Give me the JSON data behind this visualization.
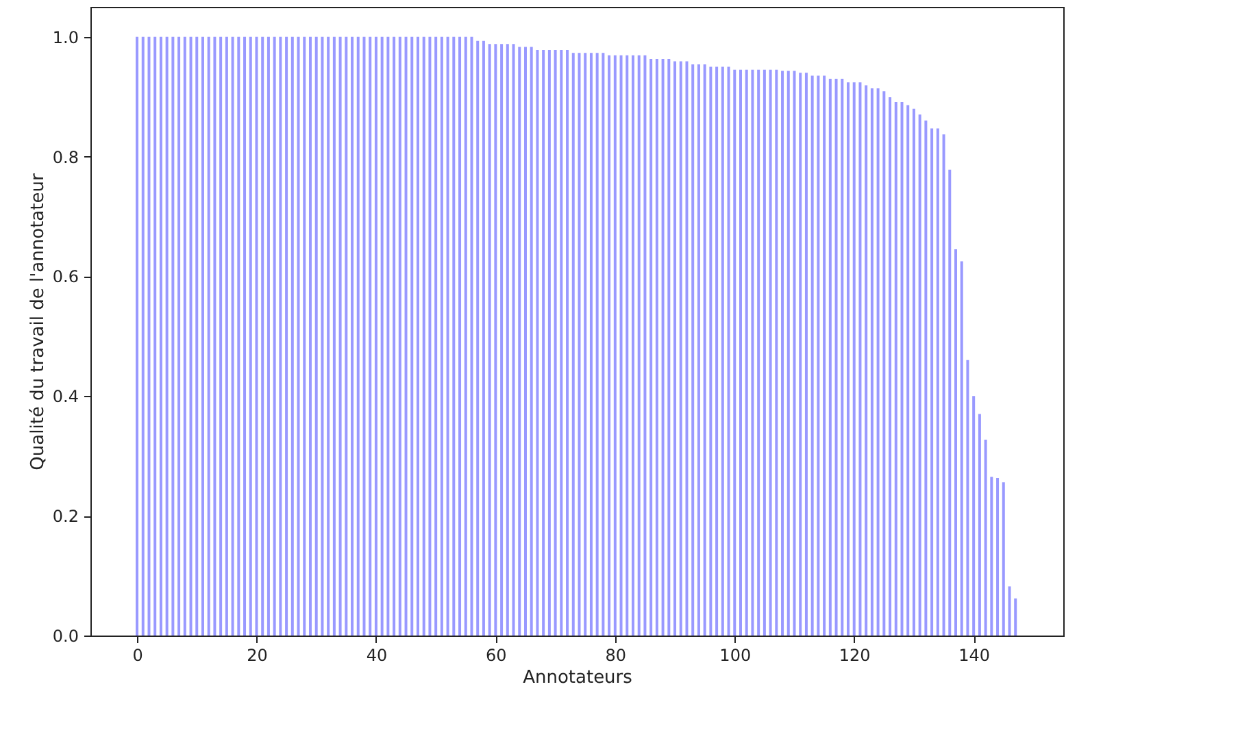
{
  "chart_data": {
    "type": "bar",
    "xlabel": "Annotateurs",
    "ylabel": "Qualité du travail de l'annotateur",
    "color": "#9999ff",
    "x": [
      0,
      1,
      2,
      3,
      4,
      5,
      6,
      7,
      8,
      9,
      10,
      11,
      12,
      13,
      14,
      15,
      16,
      17,
      18,
      19,
      20,
      21,
      22,
      23,
      24,
      25,
      26,
      27,
      28,
      29,
      30,
      31,
      32,
      33,
      34,
      35,
      36,
      37,
      38,
      39,
      40,
      41,
      42,
      43,
      44,
      45,
      46,
      47,
      48,
      49,
      50,
      51,
      52,
      53,
      54,
      55,
      56,
      57,
      58,
      59,
      60,
      61,
      62,
      63,
      64,
      65,
      66,
      67,
      68,
      69,
      70,
      71,
      72,
      73,
      74,
      75,
      76,
      77,
      78,
      79,
      80,
      81,
      82,
      83,
      84,
      85,
      86,
      87,
      88,
      89,
      90,
      91,
      92,
      93,
      94,
      95,
      96,
      97,
      98,
      99,
      100,
      101,
      102,
      103,
      104,
      105,
      106,
      107,
      108,
      109,
      110,
      111,
      112,
      113,
      114,
      115,
      116,
      117,
      118,
      119,
      120,
      121,
      122,
      123,
      124,
      125,
      126,
      127,
      128,
      129,
      130,
      131,
      132,
      133,
      134,
      135,
      136,
      137,
      138,
      139,
      140,
      141,
      142,
      143,
      144,
      145,
      146,
      147
    ],
    "values": [
      1,
      1,
      1,
      1,
      1,
      1,
      1,
      1,
      1,
      1,
      1,
      1,
      1,
      1,
      1,
      1,
      1,
      1,
      1,
      1,
      1,
      1,
      1,
      1,
      1,
      1,
      1,
      1,
      1,
      1,
      1,
      1,
      1,
      1,
      1,
      1,
      1,
      1,
      1,
      1,
      1,
      1,
      1,
      1,
      1,
      1,
      1,
      1,
      1,
      1,
      1,
      1,
      1,
      1,
      1,
      1,
      1,
      0.993,
      0.993,
      0.988,
      0.988,
      0.988,
      0.988,
      0.988,
      0.983,
      0.983,
      0.983,
      0.978,
      0.978,
      0.978,
      0.978,
      0.978,
      0.978,
      0.973,
      0.973,
      0.973,
      0.973,
      0.973,
      0.973,
      0.969,
      0.969,
      0.969,
      0.969,
      0.969,
      0.969,
      0.969,
      0.963,
      0.963,
      0.963,
      0.963,
      0.959,
      0.959,
      0.959,
      0.954,
      0.954,
      0.954,
      0.95,
      0.95,
      0.95,
      0.95,
      0.945,
      0.945,
      0.945,
      0.945,
      0.945,
      0.945,
      0.945,
      0.945,
      0.943,
      0.943,
      0.943,
      0.94,
      0.94,
      0.935,
      0.935,
      0.935,
      0.93,
      0.93,
      0.93,
      0.924,
      0.924,
      0.924,
      0.919,
      0.914,
      0.914,
      0.909,
      0.899,
      0.891,
      0.891,
      0.886,
      0.88,
      0.87,
      0.86,
      0.847,
      0.847,
      0.837,
      0.778,
      0.645,
      0.625,
      0.46,
      0.4,
      0.37,
      0.327,
      0.265,
      0.263,
      0.256,
      0.082,
      0.062
    ],
    "xlim": [
      -7.8,
      155
    ],
    "ylim": [
      0,
      1.05
    ],
    "xticks": [
      0,
      20,
      40,
      60,
      80,
      100,
      120,
      140
    ],
    "yticks": [
      {
        "value": 0,
        "label": "0.0"
      },
      {
        "value": 0.2,
        "label": "0.2"
      },
      {
        "value": 0.4,
        "label": "0.4"
      },
      {
        "value": 0.6,
        "label": "0.6"
      },
      {
        "value": 0.8,
        "label": "0.8"
      },
      {
        "value": 1,
        "label": "1.0"
      }
    ],
    "grid": false
  }
}
